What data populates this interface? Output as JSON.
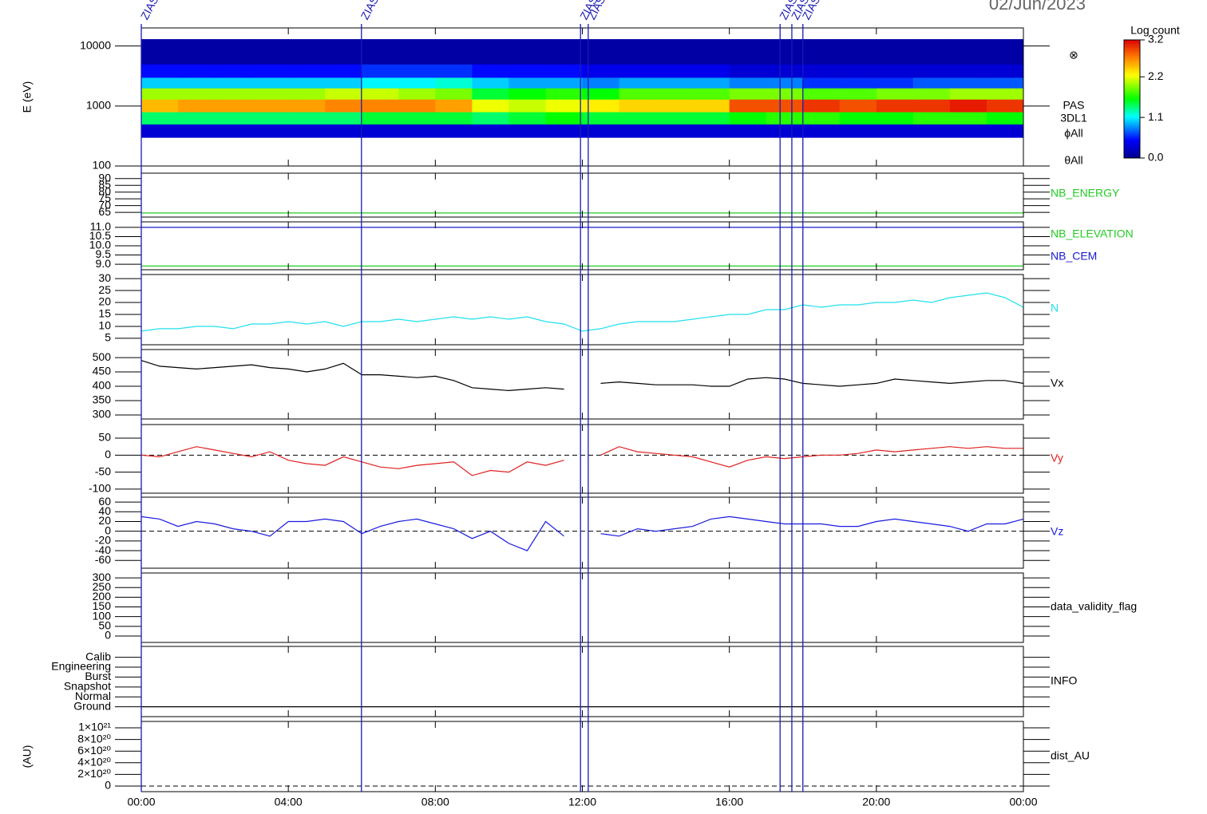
{
  "figure": {
    "title": "02/Jun/2023",
    "xlim": [
      0,
      24
    ],
    "xticks": [
      {
        "value": 0,
        "label": "00:00"
      },
      {
        "value": 4,
        "label": "04:00"
      },
      {
        "value": 8,
        "label": "08:00"
      },
      {
        "value": 12,
        "label": "12:00"
      },
      {
        "value": 16,
        "label": "16:00"
      },
      {
        "value": 20,
        "label": "20:00"
      },
      {
        "value": 24,
        "label": "00:00"
      }
    ],
    "event_color": "#1a1ab4",
    "events": [
      {
        "time": 0,
        "label": "ZIAS"
      },
      {
        "time": 5.99,
        "label": "ZIAS"
      },
      {
        "time": 11.95,
        "label": "ZIAS"
      },
      {
        "time": 12.16,
        "label": "ZIAS"
      },
      {
        "time": 17.38,
        "label": "ZIAS"
      },
      {
        "time": 17.7,
        "label": "ZIAS"
      },
      {
        "time": 18.0,
        "label": "ZIAS"
      }
    ]
  },
  "chart_data": [
    {
      "type": "heatmap",
      "ylabel": "E (eV)",
      "ylog": true,
      "ylim": [
        100,
        20000
      ],
      "yticks": [
        100,
        1000,
        10000
      ],
      "labels": [
        "⊗",
        "PAS",
        "3DL1",
        "ϕAll",
        "θAll"
      ],
      "colorbar": {
        "title": "Log count",
        "clim": [
          0,
          3.2
        ],
        "ticks": [
          {
            "value": 0,
            "label": "0.0"
          },
          {
            "value": 1.1,
            "label": "1.1"
          },
          {
            "value": 2.2,
            "label": "2.2"
          },
          {
            "value": 3.2,
            "label": "3.2"
          }
        ]
      },
      "xbins": [
        0,
        1,
        2,
        3,
        4,
        5,
        6,
        7,
        8,
        9,
        10,
        11,
        12,
        13,
        14,
        15,
        16,
        17,
        18,
        19,
        20,
        21,
        22,
        23,
        24
      ],
      "ybins": [
        300,
        500,
        800,
        1300,
        2000,
        3000,
        5000,
        13000
      ],
      "values": [
        [
          0.3,
          0.3,
          0.3,
          0.3,
          0.3,
          0.3,
          0.3,
          0.3,
          0.3,
          0.3,
          0.3,
          0.3,
          0.3,
          0.3,
          0.3,
          0.3,
          0.3,
          0.3,
          0.3,
          0.3,
          0.3,
          0.3,
          0.3,
          0.3
        ],
        [
          1.4,
          1.4,
          1.4,
          1.4,
          1.4,
          1.4,
          1.5,
          1.5,
          1.5,
          1.4,
          1.5,
          1.6,
          1.5,
          1.5,
          1.5,
          1.5,
          1.6,
          1.7,
          1.7,
          1.6,
          1.6,
          1.7,
          1.7,
          1.6
        ],
        [
          2.5,
          2.6,
          2.6,
          2.6,
          2.6,
          2.7,
          2.7,
          2.7,
          2.6,
          2.2,
          2.1,
          2.2,
          2.3,
          2.4,
          2.4,
          2.4,
          2.9,
          2.9,
          3.0,
          2.9,
          3.0,
          3.0,
          3.1,
          3.0
        ],
        [
          2.0,
          2.0,
          2.0,
          2.0,
          2.0,
          2.1,
          2.1,
          2.0,
          1.9,
          1.5,
          1.6,
          1.7,
          1.6,
          1.8,
          1.8,
          1.8,
          1.9,
          1.9,
          1.8,
          1.8,
          1.9,
          1.9,
          2.0,
          2.0
        ],
        [
          1.0,
          1.0,
          1.0,
          1.0,
          1.0,
          1.0,
          1.1,
          1.1,
          1.2,
          1.0,
          0.9,
          0.9,
          0.8,
          0.9,
          0.9,
          0.9,
          0.8,
          0.8,
          0.6,
          0.6,
          0.6,
          0.7,
          0.7,
          0.7
        ],
        [
          0.5,
          0.5,
          0.5,
          0.5,
          0.5,
          0.5,
          0.6,
          0.6,
          0.6,
          0.5,
          0.5,
          0.5,
          0.4,
          0.4,
          0.4,
          0.4,
          0.3,
          0.3,
          0.3,
          0.3,
          0.3,
          0.3,
          0.3,
          0.3
        ],
        [
          0.1,
          0.1,
          0.1,
          0.1,
          0.1,
          0.1,
          0.1,
          0.1,
          0.1,
          0.1,
          0.1,
          0.1,
          0.1,
          0.1,
          0.1,
          0.1,
          0.1,
          0.1,
          0.1,
          0.1,
          0.1,
          0.1,
          0.1,
          0.1
        ]
      ]
    },
    {
      "type": "line",
      "ylim": [
        61.5,
        94
      ],
      "yticks": [
        65,
        70,
        75,
        80,
        85,
        90
      ],
      "x": [
        0,
        24
      ],
      "series": [
        {
          "name": "NB_ENERGY",
          "color": "#22cc22",
          "values": [
            64.5,
            64.5
          ]
        }
      ]
    },
    {
      "type": "line",
      "ylim": [
        8.7,
        11.3
      ],
      "yticks": [
        {
          "value": 9,
          "label": "9.0"
        },
        {
          "value": 9.5,
          "label": "9.5"
        },
        {
          "value": 10,
          "label": "10.0"
        },
        {
          "value": 10.5,
          "label": "10.5"
        },
        {
          "value": 11,
          "label": "11.0"
        }
      ],
      "x": [
        0,
        24
      ],
      "series": [
        {
          "name": "NB_ELEVATION",
          "color": "#22cc22",
          "values": [
            8.9,
            8.9
          ]
        },
        {
          "name": "NB_CEM",
          "color": "#1a1acc",
          "values": [
            11.0,
            11.0
          ]
        }
      ]
    },
    {
      "type": "line",
      "ylim": [
        2.3,
        31.7
      ],
      "yticks": [
        5,
        10,
        15,
        20,
        25,
        30
      ],
      "x": [
        0,
        0.5,
        1,
        1.5,
        2,
        2.5,
        3,
        3.5,
        4,
        4.5,
        5,
        5.5,
        6,
        6.5,
        7,
        7.5,
        8,
        8.5,
        9,
        9.5,
        10,
        10.5,
        11,
        11.5,
        12,
        12.5,
        13,
        13.5,
        14,
        14.5,
        15,
        15.5,
        16,
        16.5,
        17,
        17.5,
        18,
        18.5,
        19,
        19.5,
        20,
        20.5,
        21,
        21.5,
        22,
        22.5,
        23,
        23.5,
        24
      ],
      "series": [
        {
          "name": "N",
          "color": "#22e0ee",
          "values": [
            8,
            9,
            9,
            10,
            10,
            9,
            11,
            11,
            12,
            11,
            12,
            10,
            12,
            12,
            13,
            12,
            13,
            14,
            13,
            14,
            13,
            14,
            12,
            11,
            8,
            9,
            11,
            12,
            12,
            12,
            13,
            14,
            15,
            15,
            17,
            17,
            19,
            18,
            19,
            19,
            20,
            20,
            21,
            20,
            22,
            23,
            24,
            22,
            18
          ]
        }
      ]
    },
    {
      "type": "line",
      "ylim": [
        286,
        528
      ],
      "yticks": [
        300,
        350,
        400,
        450,
        500
      ],
      "x": [
        0,
        0.5,
        1,
        1.5,
        2,
        2.5,
        3,
        3.5,
        4,
        4.5,
        5,
        5.5,
        6,
        6.5,
        7,
        7.5,
        8,
        8.5,
        9,
        9.5,
        10,
        10.5,
        11,
        11.5,
        12,
        12.5,
        13,
        13.5,
        14,
        14.5,
        15,
        15.5,
        16,
        16.5,
        17,
        17.5,
        18,
        18.5,
        19,
        19.5,
        20,
        20.5,
        21,
        21.5,
        22,
        22.5,
        23,
        23.5,
        24
      ],
      "series": [
        {
          "name": "Vx",
          "color": "#000000",
          "values": [
            490,
            470,
            465,
            460,
            465,
            470,
            475,
            465,
            460,
            450,
            460,
            480,
            440,
            440,
            435,
            430,
            435,
            420,
            395,
            390,
            385,
            390,
            395,
            390,
            null,
            410,
            415,
            410,
            405,
            405,
            405,
            400,
            400,
            425,
            430,
            425,
            410,
            405,
            400,
            405,
            410,
            425,
            420,
            415,
            410,
            415,
            420,
            420,
            410
          ]
        }
      ]
    },
    {
      "type": "line",
      "ylim": [
        -112,
        90
      ],
      "yticks": [
        -100,
        -50,
        0,
        50
      ],
      "zero_line": true,
      "x": [
        0,
        0.5,
        1,
        1.5,
        2,
        2.5,
        3,
        3.5,
        4,
        4.5,
        5,
        5.5,
        6,
        6.5,
        7,
        7.5,
        8,
        8.5,
        9,
        9.5,
        10,
        10.5,
        11,
        11.5,
        12,
        12.5,
        13,
        13.5,
        14,
        14.5,
        15,
        15.5,
        16,
        16.5,
        17,
        17.5,
        18,
        18.5,
        19,
        19.5,
        20,
        20.5,
        21,
        21.5,
        22,
        22.5,
        23,
        23.5,
        24
      ],
      "series": [
        {
          "name": "Vy",
          "color": "#e02020",
          "values": [
            0,
            -5,
            10,
            25,
            15,
            5,
            -5,
            10,
            -15,
            -25,
            -30,
            -5,
            -20,
            -35,
            -40,
            -30,
            -25,
            -20,
            -60,
            -45,
            -50,
            -20,
            -30,
            -15,
            null,
            0,
            25,
            10,
            5,
            0,
            -5,
            -20,
            -35,
            -15,
            -5,
            -10,
            -5,
            0,
            0,
            5,
            15,
            10,
            15,
            20,
            25,
            20,
            25,
            20,
            20
          ]
        }
      ]
    },
    {
      "type": "line",
      "ylim": [
        -76,
        70
      ],
      "yticks": [
        -60,
        -40,
        -20,
        0,
        20,
        40,
        60
      ],
      "zero_line": true,
      "x": [
        0,
        0.5,
        1,
        1.5,
        2,
        2.5,
        3,
        3.5,
        4,
        4.5,
        5,
        5.5,
        6,
        6.5,
        7,
        7.5,
        8,
        8.5,
        9,
        9.5,
        10,
        10.5,
        11,
        11.5,
        12,
        12.5,
        13,
        13.5,
        14,
        14.5,
        15,
        15.5,
        16,
        16.5,
        17,
        17.5,
        18,
        18.5,
        19,
        19.5,
        20,
        20.5,
        21,
        21.5,
        22,
        22.5,
        23,
        23.5,
        24
      ],
      "series": [
        {
          "name": "Vz",
          "color": "#1a1ae0",
          "values": [
            30,
            25,
            10,
            20,
            15,
            5,
            0,
            -10,
            20,
            20,
            25,
            20,
            -5,
            10,
            20,
            25,
            15,
            5,
            -15,
            0,
            -25,
            -40,
            20,
            -10,
            null,
            -5,
            -10,
            5,
            0,
            5,
            10,
            25,
            30,
            25,
            20,
            15,
            15,
            15,
            10,
            10,
            20,
            25,
            20,
            15,
            10,
            0,
            15,
            15,
            25
          ]
        }
      ]
    },
    {
      "type": "line",
      "ylim": [
        -33,
        325
      ],
      "yticks": [
        0,
        50,
        100,
        150,
        200,
        250,
        300
      ],
      "label": "data_validity_flag",
      "series": []
    },
    {
      "type": "line",
      "ylim": [
        -1,
        6.1
      ],
      "yticks": [
        {
          "value": 0,
          "label": "Ground"
        },
        {
          "value": 1,
          "label": "Normal"
        },
        {
          "value": 2,
          "label": "Snapshot"
        },
        {
          "value": 3,
          "label": "Burst"
        },
        {
          "value": 4,
          "label": "Engineering"
        },
        {
          "value": 5,
          "label": "Calib"
        }
      ],
      "x": [
        0,
        24
      ],
      "series": [
        {
          "name": "INFO",
          "color": "#000000",
          "values": [
            0,
            0
          ]
        }
      ]
    },
    {
      "type": "line",
      "ylabel": "(AU)",
      "ylim": [
        -9.6e+19,
        1.11e+21
      ],
      "zero_line": true,
      "label": "dist_AU",
      "yticks": [
        0,
        {
          "value": 2e+20,
          "label": "2×10²⁰"
        },
        {
          "value": 4e+20,
          "label": "4×10²⁰"
        },
        {
          "value": 6e+20,
          "label": "6×10²⁰"
        },
        {
          "value": 8e+20,
          "label": "8×10²⁰"
        },
        {
          "value": 1e+21,
          "label": "1×10²¹"
        }
      ],
      "series": []
    }
  ]
}
